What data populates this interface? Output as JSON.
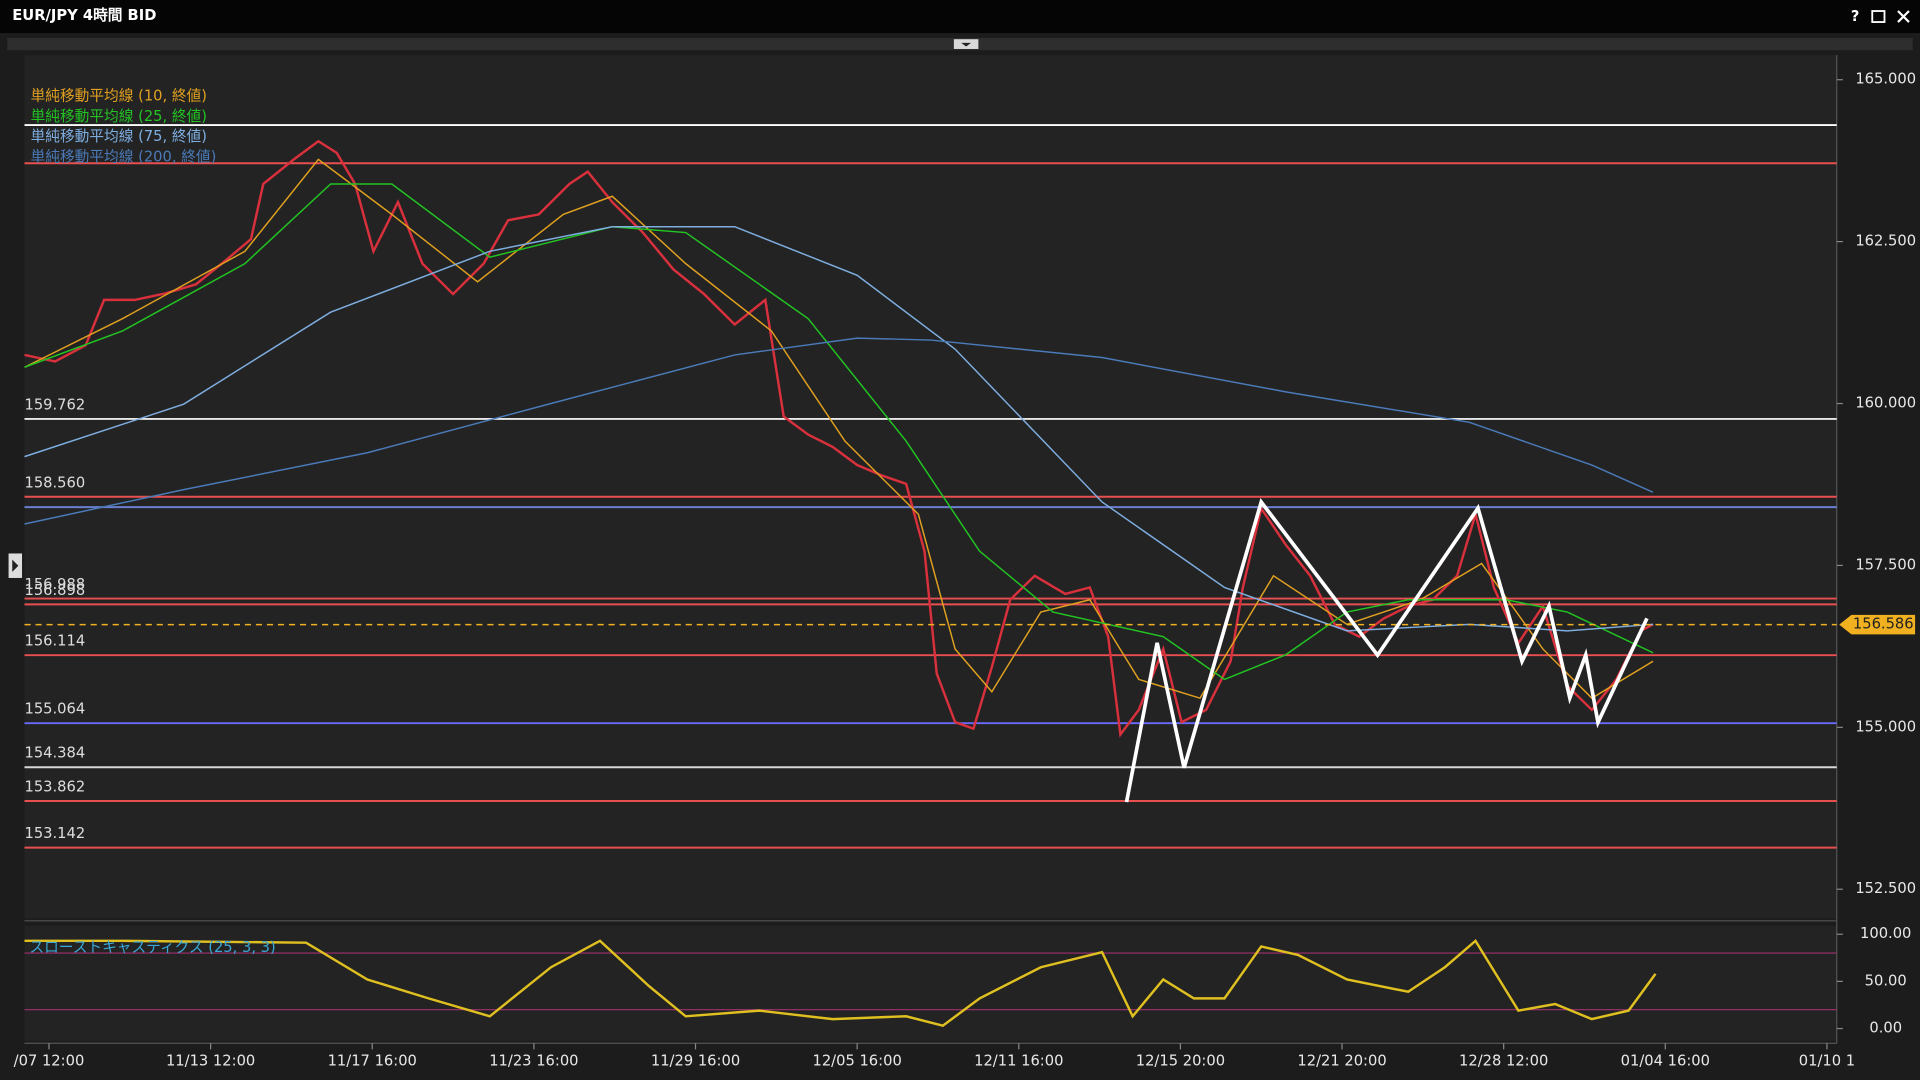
{
  "window": {
    "title": "EUR/JPY 4時間 BID",
    "help": "?"
  },
  "chart_data": [
    {
      "type": "line",
      "xlim": [
        -5,
        365
      ],
      "ylim": [
        152.05,
        165.38
      ],
      "xticks": [
        {
          "value": 0,
          "label": "/07 12:00"
        },
        {
          "value": 33,
          "label": "11/13 12:00"
        },
        {
          "value": 66,
          "label": "11/17 16:00"
        },
        {
          "value": 99,
          "label": "11/23 16:00"
        },
        {
          "value": 132,
          "label": "11/29 16:00"
        },
        {
          "value": 165,
          "label": "12/05 16:00"
        },
        {
          "value": 198,
          "label": "12/11 16:00"
        },
        {
          "value": 231,
          "label": "12/15 20:00"
        },
        {
          "value": 264,
          "label": "12/21 20:00"
        },
        {
          "value": 297,
          "label": "12/28 12:00"
        },
        {
          "value": 330,
          "label": "01/04 16:00"
        },
        {
          "value": 363,
          "label": "01/10 1"
        }
      ],
      "yticks": [
        {
          "value": 165,
          "label": "165.000"
        },
        {
          "value": 162.5,
          "label": "162.500"
        },
        {
          "value": 160,
          "label": "160.000"
        },
        {
          "value": 157.5,
          "label": "157.500"
        },
        {
          "value": 155,
          "label": "155.000"
        },
        {
          "value": 152.5,
          "label": "152.500"
        }
      ],
      "series": [
        {
          "color": "#d8303c",
          "x": [
            -5,
            1.25,
            7.5,
            11.25,
            17.5,
            23.75,
            30,
            36.25,
            41.25,
            43.75,
            50,
            55,
            58.75,
            62.5,
            66.25,
            71.25,
            76.25,
            82.5,
            88.75,
            93.75,
            100,
            106.25,
            110,
            115,
            121.25,
            127.5,
            133.75,
            140,
            146.25,
            150,
            155,
            160,
            165,
            170,
            175,
            178.75,
            181.25,
            185,
            188.75,
            192.5,
            196.25,
            201.25,
            207.5,
            212.5,
            216.25,
            218.75,
            222.5,
            227.5,
            231.25,
            236.25,
            241.25,
            243.75,
            247.5,
            252.5,
            257.5,
            262.5,
            267.5,
            272.5,
            277.5,
            282.5,
            287.5,
            291.25,
            295,
            300,
            305,
            310,
            315,
            320,
            325,
            327.5
          ],
          "values": [
            160.75,
            160.65,
            160.9,
            161.6,
            161.6,
            161.7,
            161.84,
            162.22,
            162.54,
            163.39,
            163.77,
            164.05,
            163.87,
            163.39,
            162.35,
            163.11,
            162.16,
            161.69,
            162.16,
            162.83,
            162.92,
            163.39,
            163.58,
            163.11,
            162.64,
            162.07,
            161.69,
            161.22,
            161.6,
            159.8,
            159.52,
            159.33,
            159.05,
            158.89,
            158.76,
            157.72,
            155.83,
            155.08,
            154.98,
            155.93,
            156.97,
            157.34,
            157.06,
            157.16,
            156.4,
            154.89,
            155.27,
            156.21,
            155.08,
            155.27,
            156.02,
            157.16,
            158.38,
            157.82,
            157.34,
            156.59,
            156.4,
            156.68,
            156.87,
            156.97,
            157.34,
            158.29,
            157.16,
            156.3,
            156.87,
            155.64,
            155.27,
            155.74,
            156.49,
            156.59
          ]
        },
        {
          "name": "単純移動平均線 (10, 終値)",
          "color": "#e0a020",
          "x": [
            -5,
            15,
            40,
            55,
            70,
            87.5,
            105,
            115,
            130,
            147.5,
            162.5,
            177.5,
            185,
            192.5,
            202.5,
            212.5,
            222.5,
            235,
            250,
            265,
            280,
            292.5,
            305,
            315,
            327.5
          ],
          "values": [
            160.56,
            161.31,
            162.35,
            163.77,
            162.92,
            161.88,
            162.92,
            163.2,
            162.16,
            161.12,
            159.42,
            158.29,
            156.21,
            155.55,
            156.78,
            156.97,
            155.74,
            155.45,
            157.34,
            156.59,
            156.97,
            157.53,
            156.21,
            155.45,
            156.02
          ]
        },
        {
          "name": "単純移動平均線 (25, 終値)",
          "color": "#22c422",
          "x": [
            -5,
            15,
            40,
            57.5,
            70,
            90,
            115,
            130,
            155,
            175,
            190,
            205,
            227.5,
            240,
            252.5,
            265,
            277.5,
            297.5,
            310,
            327.5
          ],
          "values": [
            160.56,
            161.12,
            162.16,
            163.39,
            163.39,
            162.26,
            162.73,
            162.64,
            161.31,
            159.42,
            157.72,
            156.78,
            156.4,
            155.74,
            156.12,
            156.78,
            156.97,
            156.97,
            156.78,
            156.15
          ]
        },
        {
          "name": "単純移動平均線 (75, 終値)",
          "color": "#7eaee0",
          "x": [
            -5,
            27.5,
            57.5,
            90,
            115,
            140,
            165,
            185,
            215,
            240,
            265,
            290,
            310,
            327.5
          ],
          "values": [
            159.18,
            159.99,
            161.41,
            162.35,
            162.73,
            162.73,
            161.98,
            160.84,
            158.48,
            157.16,
            156.49,
            156.59,
            156.49,
            156.59
          ]
        },
        {
          "name": "単純移動平均線 (200, 終値)",
          "color": "#4a7ab8",
          "x": [
            -5,
            27.5,
            65,
            102.5,
            140,
            165,
            180,
            215,
            252.5,
            290,
            315,
            327.5
          ],
          "values": [
            158.14,
            158.67,
            159.24,
            160,
            160.75,
            161.01,
            160.98,
            160.71,
            160.18,
            159.71,
            159.05,
            158.63
          ]
        }
      ],
      "levels": [
        {
          "value": 164.3,
          "color": "#ffffff"
        },
        {
          "value": 163.71,
          "color": "#e85050"
        },
        {
          "value": 159.762,
          "color": "#e8e8e8",
          "label": "159.762"
        },
        {
          "value": 158.56,
          "color": "#e85050",
          "label": "158.560"
        },
        {
          "value": 158.4,
          "color": "#6a7fd0"
        },
        {
          "value": 156.988,
          "color": "#e85050",
          "label": "156.988"
        },
        {
          "value": 156.898,
          "color": "#e85050",
          "label": "156.898"
        },
        {
          "value": 156.114,
          "color": "#e85050",
          "label": "156.114"
        },
        {
          "value": 155.064,
          "color": "#6b6bff",
          "label": "155.064"
        },
        {
          "value": 154.384,
          "color": "#d8d8d8",
          "label": "154.384"
        },
        {
          "value": 153.862,
          "color": "#e85050",
          "label": "153.862"
        },
        {
          "value": 153.142,
          "color": "#e85050",
          "label": "153.142"
        }
      ],
      "last_price": {
        "value": 156.586,
        "label": "156.586",
        "color": "#f0b020"
      }
    },
    {
      "type": "line",
      "title": "スローストキャスティクス (25, 3, 3)",
      "xlim": [
        -5,
        365
      ],
      "ylim": [
        -13,
        109
      ],
      "yticks": [
        {
          "value": 100,
          "label": "100.00"
        },
        {
          "value": 50,
          "label": "50.00"
        },
        {
          "value": 0,
          "label": "0.00"
        }
      ],
      "series": [
        {
          "color": "#e0c020",
          "x": [
            -5,
            15,
            52.5,
            65,
            77.5,
            90,
            102.5,
            112.5,
            122.5,
            130,
            145,
            160,
            175,
            182.5,
            190,
            202.5,
            215,
            221.25,
            227.5,
            233.75,
            240,
            247.5,
            255,
            265,
            277.5,
            285,
            291.25,
            300,
            307.5,
            315,
            322.5,
            328
          ],
          "values": [
            93,
            93,
            91,
            52,
            32,
            13,
            65,
            93,
            45,
            13,
            19,
            10,
            13,
            3,
            32,
            65,
            81,
            13,
            52,
            32,
            32,
            87,
            78,
            52,
            39,
            65,
            93,
            19,
            26,
            10,
            19,
            58
          ]
        }
      ],
      "levels": [
        {
          "value": 80,
          "color": "#a03070"
        },
        {
          "value": 20,
          "color": "#a03070"
        }
      ]
    }
  ]
}
